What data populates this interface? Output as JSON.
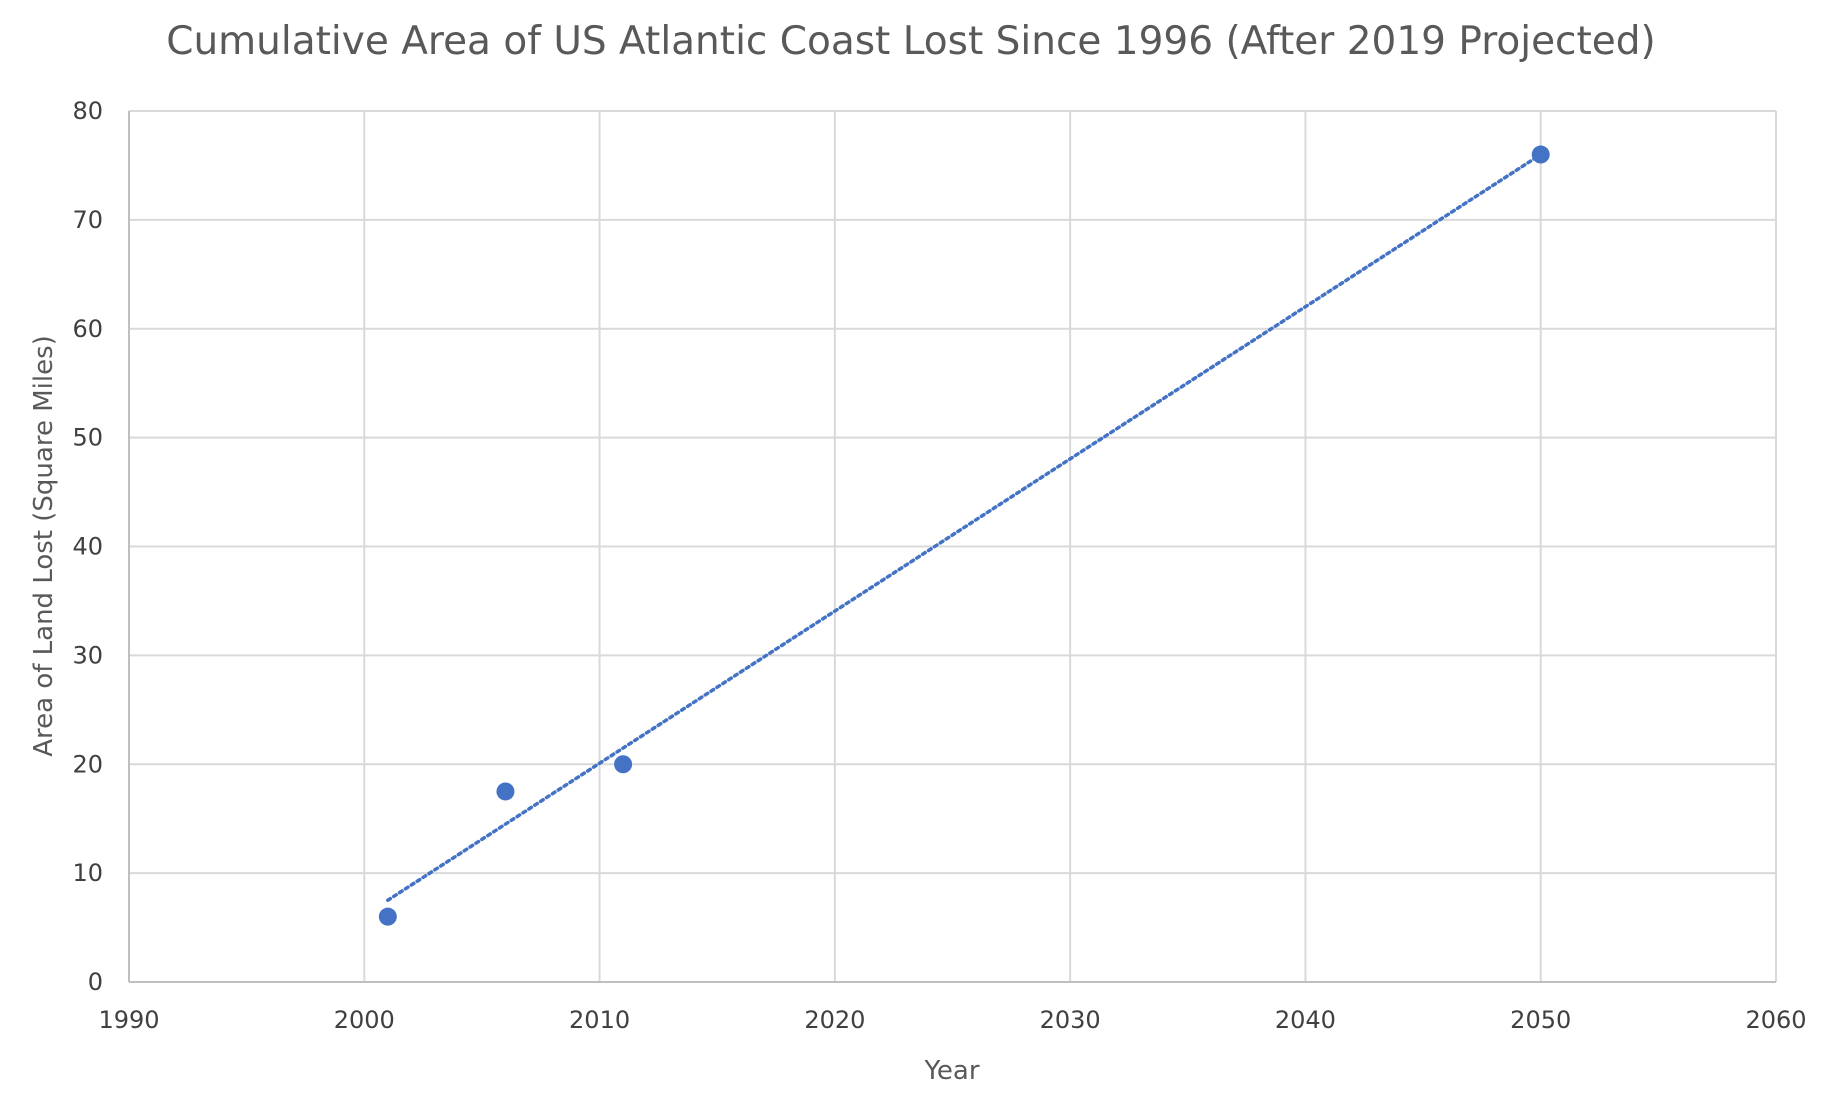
{
  "chart_data": {
    "type": "scatter",
    "title": "Cumulative Area of US Atlantic Coast Lost Since 1996 (After 2019 Projected)",
    "xlabel": "Year",
    "ylabel": "Area of Land Lost (Square Miles)",
    "xlim": [
      1990,
      2060
    ],
    "ylim": [
      0,
      80
    ],
    "x_ticks": [
      1990,
      2000,
      2010,
      2020,
      2030,
      2040,
      2050,
      2060
    ],
    "y_ticks": [
      0,
      10,
      20,
      30,
      40,
      50,
      60,
      70,
      80
    ],
    "grid": true,
    "legend": "none",
    "series": [
      {
        "color": "#4472C4",
        "points": [
          {
            "x": 2001,
            "y": 6
          },
          {
            "x": 2006,
            "y": 17.5
          },
          {
            "x": 2011,
            "y": 20
          },
          {
            "x": 2050,
            "y": 76
          }
        ]
      }
    ],
    "trendline": {
      "type": "linear",
      "style": "dotted",
      "color": "#4472C4",
      "x_range": [
        2001,
        2050
      ]
    }
  }
}
